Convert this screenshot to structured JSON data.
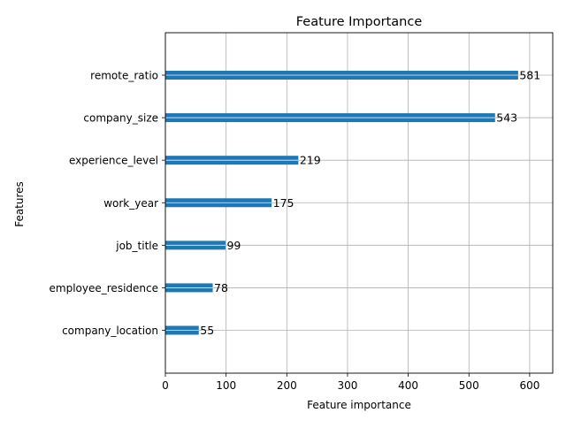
{
  "chart_data": {
    "type": "bar",
    "orientation": "horizontal",
    "title": "Feature Importance",
    "xlabel": "Feature importance",
    "ylabel": "Features",
    "categories": [
      "company_location",
      "employee_residence",
      "job_title",
      "work_year",
      "experience_level",
      "company_size",
      "remote_ratio"
    ],
    "values": [
      55,
      78,
      99,
      175,
      219,
      543,
      581
    ],
    "data_labels": [
      "55",
      "78",
      "99",
      "175",
      "219",
      "543",
      "581"
    ],
    "xlim": [
      0,
      638
    ],
    "xticks": [
      0,
      100,
      200,
      300,
      400,
      500,
      600
    ],
    "grid": true,
    "bar_color": "#1f77b4",
    "grid_color": "#b0b0b0"
  }
}
